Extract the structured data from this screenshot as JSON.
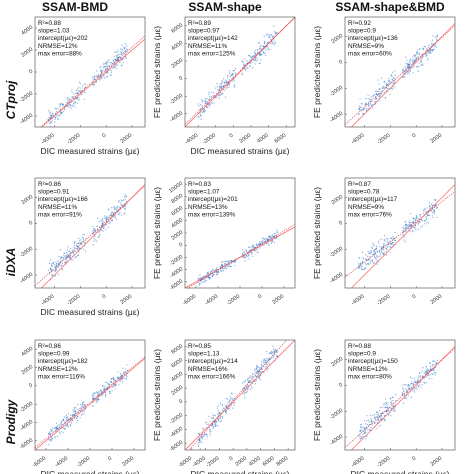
{
  "column_titles": [
    "SSAM-BMD",
    "SSAM-shape",
    "SSAM-shape&BMD"
  ],
  "row_titles": [
    "CTproj",
    "iDXA",
    "Prodigy"
  ],
  "colors": {
    "points": "#2b73c6",
    "identity_line": "#ff6f6f",
    "fit_line": "#d24040",
    "frame": "#444444"
  },
  "chart_data": [
    {
      "type": "scatter",
      "column": "SSAM-BMD",
      "row": "CTproj",
      "xlabel": "DIC measured strains (με)",
      "ylabel": "",
      "xticks": [
        -4000,
        -2000,
        0,
        2000
      ],
      "yticks": [
        -4000,
        -2000,
        0,
        2000,
        4000
      ],
      "xlim": [
        -5500,
        3000
      ],
      "ylim": [
        -5000,
        5000
      ],
      "stats": [
        "R²=0.88",
        "slope=1.03",
        "intercept(με)=202",
        "NRMSE=12%",
        "max error=88%"
      ],
      "fit": {
        "slope": 1.03,
        "intercept": 202
      }
    },
    {
      "type": "scatter",
      "column": "SSAM-shape",
      "row": "CTproj",
      "xlabel": "DIC measured strains (με)",
      "ylabel": "FE predicted strains (με)",
      "xticks": [
        -4000,
        -2000,
        0,
        2000,
        4000,
        6000
      ],
      "yticks": [
        -4000,
        -2000,
        0,
        2000,
        4000,
        6000
      ],
      "xlim": [
        -5500,
        7000
      ],
      "ylim": [
        -5500,
        7000
      ],
      "stats": [
        "R²=0.89",
        "slope=0.97",
        "intercept(με)=142",
        "NRMSE=11%",
        "max error=125%"
      ],
      "fit": {
        "slope": 0.97,
        "intercept": 142
      }
    },
    {
      "type": "scatter",
      "column": "SSAM-shape&BMD",
      "row": "CTproj",
      "xlabel": "",
      "ylabel": "FE predicted strains (με)",
      "xticks": [
        -4000,
        -2000,
        0,
        2000
      ],
      "yticks": [
        -4000,
        -2000,
        0,
        2000
      ],
      "xlim": [
        -5500,
        3000
      ],
      "ylim": [
        -5000,
        3500
      ],
      "stats": [
        "R²=0.92",
        "slope=0.9",
        "intercept(με)=136",
        "NRMSE=9%",
        "max error=60%"
      ],
      "fit": {
        "slope": 0.9,
        "intercept": 136
      }
    },
    {
      "type": "scatter",
      "column": "SSAM-BMD",
      "row": "iDXA",
      "xlabel": "DIC measured strains (με)",
      "ylabel": "",
      "xticks": [
        -4000,
        -2000,
        0,
        2000
      ],
      "yticks": [
        -4000,
        -2000,
        0,
        2000
      ],
      "xlim": [
        -5500,
        3000
      ],
      "ylim": [
        -5000,
        3500
      ],
      "stats": [
        "R²=0.86",
        "slope=0.91",
        "intercept(με)=166",
        "NRMSE=11%",
        "max error=91%"
      ],
      "fit": {
        "slope": 0.91,
        "intercept": 166
      }
    },
    {
      "type": "scatter",
      "column": "SSAM-shape",
      "row": "iDXA",
      "xlabel": "",
      "ylabel": "FE predicted strains (με)",
      "xticks": [
        -6000,
        -4000,
        -2000,
        0,
        2000
      ],
      "yticks": [
        -6000,
        -4000,
        -2000,
        0,
        2000,
        4000,
        6000,
        8000,
        10000
      ],
      "xlim": [
        -7000,
        3000
      ],
      "ylim": [
        -7000,
        11000
      ],
      "stats": [
        "R²=0.83",
        "slope=1.07",
        "intercept(με)=201",
        "NRMSE=13%",
        "max error=139%"
      ],
      "fit": {
        "slope": 1.07,
        "intercept": 201
      }
    },
    {
      "type": "scatter",
      "column": "SSAM-shape&BMD",
      "row": "iDXA",
      "xlabel": "",
      "ylabel": "FE predicted strains (με)",
      "xticks": [
        -4000,
        -2000,
        0,
        2000
      ],
      "yticks": [
        -4000,
        -2000,
        0,
        2000
      ],
      "xlim": [
        -5500,
        3000
      ],
      "ylim": [
        -5000,
        3500
      ],
      "stats": [
        "R²=0.87",
        "slope=0.78",
        "intercept(με)=117",
        "NRMSE=9%",
        "max error=76%"
      ],
      "fit": {
        "slope": 0.78,
        "intercept": 117
      }
    },
    {
      "type": "scatter",
      "column": "SSAM-BMD",
      "row": "Prodigy",
      "xlabel": "DIC measured strains (με)",
      "ylabel": "",
      "xticks": [
        -6000,
        -4000,
        -2000,
        0,
        2000
      ],
      "yticks": [
        -6000,
        -4000,
        -2000,
        0,
        2000,
        4000
      ],
      "xlim": [
        -7000,
        3000
      ],
      "ylim": [
        -7000,
        5000
      ],
      "stats": [
        "R²=0.86",
        "slope=0.99",
        "intercept(με)=182",
        "NRMSE=12%",
        "max error=116%"
      ],
      "fit": {
        "slope": 0.99,
        "intercept": 182
      }
    },
    {
      "type": "scatter",
      "column": "SSAM-shape",
      "row": "Prodigy",
      "xlabel": "DIC measured strains (με)",
      "ylabel": "FE predicted strains (με)",
      "xticks": [
        -6000,
        -4000,
        -2000,
        0,
        2000,
        4000,
        6000,
        8000
      ],
      "yticks": [
        -6000,
        -4000,
        -2000,
        0,
        2000,
        4000,
        6000,
        8000
      ],
      "xlim": [
        -7000,
        9000
      ],
      "ylim": [
        -7000,
        9000
      ],
      "stats": [
        "R²=0.85",
        "slope=1.13",
        "intercept(με)=214",
        "NRMSE=16%",
        "max error=166%"
      ],
      "fit": {
        "slope": 1.13,
        "intercept": 214
      }
    },
    {
      "type": "scatter",
      "column": "SSAM-shape&BMD",
      "row": "Prodigy",
      "xlabel": "DIC measured strains (με)",
      "ylabel": "FE predicted strains (με)",
      "xticks": [
        -4000,
        -2000,
        0,
        2000
      ],
      "yticks": [
        -4000,
        -2000,
        0,
        2000
      ],
      "xlim": [
        -5500,
        3000
      ],
      "ylim": [
        -5000,
        3500
      ],
      "stats": [
        "R²=0.88",
        "slope=0.9",
        "intercept(με)=150",
        "NRMSE=12%",
        "max error=80%"
      ],
      "fit": {
        "slope": 0.9,
        "intercept": 150
      }
    }
  ]
}
